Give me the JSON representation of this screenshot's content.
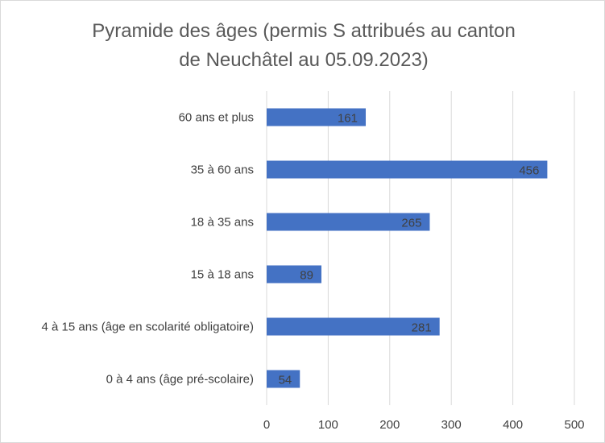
{
  "chart_data": {
    "type": "bar",
    "orientation": "horizontal",
    "title_lines": [
      "Pyramide des âges (permis S attribués au canton",
      "de Neuchâtel au 05.09.2023)"
    ],
    "categories": [
      "60 ans et plus",
      "35 à 60 ans",
      "18 à 35 ans",
      "15 à 18 ans",
      "4 à 15 ans (âge en scolarité obligatoire)",
      "0 à 4 ans (âge pré-scolaire)"
    ],
    "values": [
      161,
      456,
      265,
      89,
      281,
      54
    ],
    "xlim": [
      0,
      500
    ],
    "xticks": [
      0,
      100,
      200,
      300,
      400,
      500
    ],
    "grid": true,
    "legend": "none",
    "bar_color": "#4472c4",
    "data_labels": true
  }
}
